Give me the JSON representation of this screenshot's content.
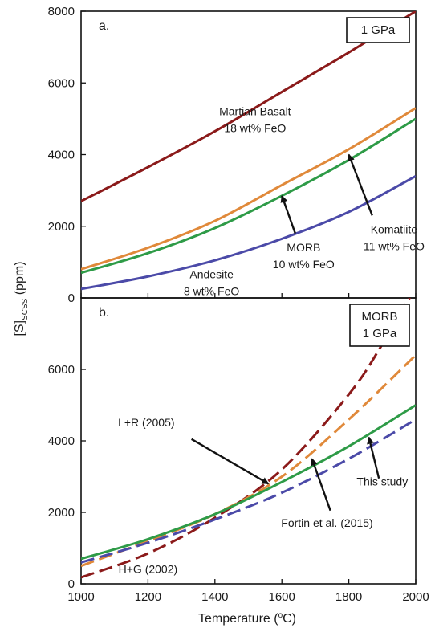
{
  "chart_data": {
    "type": "line",
    "ylabel_main": "[S]",
    "ylabel_sub": "SCSS",
    "ylabel_unit": " (ppm)",
    "xlabel_main": "Temperature (",
    "xlabel_deg": "o",
    "xlabel_tail": "C)",
    "xlim": [
      1000,
      2000
    ],
    "ylim": [
      0,
      8000
    ],
    "x_ticks": [
      1000,
      1200,
      1400,
      1600,
      1800,
      2000
    ],
    "y_ticks_a": [
      0,
      2000,
      4000,
      6000,
      8000
    ],
    "y_ticks_b": [
      0,
      2000,
      4000,
      6000
    ],
    "panels": [
      {
        "id": "a",
        "letter": "a.",
        "badge": [
          "1 GPa"
        ],
        "series": [
          {
            "color": "#8b1a1a",
            "dash": false,
            "x": [
              1000,
              1200,
              1400,
              1600,
              1800,
              2000
            ],
            "y": [
              2700,
              3650,
              4650,
              5750,
              6850,
              8000
            ]
          },
          {
            "color": "#e0893a",
            "dash": false,
            "x": [
              1000,
              1200,
              1400,
              1600,
              1800,
              2000
            ],
            "y": [
              800,
              1400,
              2150,
              3150,
              4150,
              5300
            ]
          },
          {
            "color": "#2e9b47",
            "dash": false,
            "x": [
              1000,
              1200,
              1400,
              1600,
              1800,
              2000
            ],
            "y": [
              700,
              1250,
              1950,
              2850,
              3850,
              5000
            ]
          },
          {
            "color": "#4b4aa8",
            "dash": false,
            "x": [
              1000,
              1200,
              1400,
              1600,
              1800,
              2000
            ],
            "y": [
              250,
              600,
              1050,
              1650,
              2400,
              3400
            ]
          }
        ],
        "annotations": [
          {
            "lines": [
              "Martian Basalt",
              "18 wt% FeO"
            ],
            "x": 1520,
            "y": 5100
          },
          {
            "lines": [
              "Komatiite",
              "11 wt% FeO"
            ],
            "x": 1935,
            "y": 1800
          },
          {
            "lines": [
              "MORB",
              "10 wt% FeO"
            ],
            "x": 1665,
            "y": 1300
          },
          {
            "lines": [
              "Andesite",
              "8 wt% FeO"
            ],
            "x": 1390,
            "y": 550
          }
        ],
        "arrows": [
          {
            "from": [
              1870,
              2300
            ],
            "to": [
              1800,
              4000
            ]
          },
          {
            "from": [
              1640,
              1800
            ],
            "to": [
              1600,
              2850
            ]
          }
        ]
      },
      {
        "id": "b",
        "letter": "b.",
        "badge": [
          "MORB",
          "1 GPa"
        ],
        "series": [
          {
            "color": "#8b1a1a",
            "dash": true,
            "x": [
              1000,
              1200,
              1400,
              1600,
              1800,
              1900,
              2000
            ],
            "y": [
              180,
              850,
              1850,
              3200,
              5300,
              6700,
              8300
            ]
          },
          {
            "color": "#e0893a",
            "dash": true,
            "x": [
              1000,
              1200,
              1400,
              1600,
              1800,
              2000
            ],
            "y": [
              500,
              1200,
              1950,
              3000,
              4600,
              6400
            ]
          },
          {
            "color": "#2e9b47",
            "dash": false,
            "x": [
              1000,
              1200,
              1400,
              1600,
              1800,
              2000
            ],
            "y": [
              700,
              1250,
              1950,
              2850,
              3850,
              5000
            ]
          },
          {
            "color": "#4b4aa8",
            "dash": true,
            "x": [
              1000,
              1200,
              1400,
              1600,
              1800,
              2000
            ],
            "y": [
              600,
              1150,
              1800,
              2550,
              3500,
              4600
            ]
          }
        ],
        "annotations": [
          {
            "lines": [
              "L+R (2005)"
            ],
            "x": 1195,
            "y": 4400
          },
          {
            "lines": [
              "This study"
            ],
            "x": 1900,
            "y": 2750
          },
          {
            "lines": [
              "Fortin et al. (2015)"
            ],
            "x": 1735,
            "y": 1600
          },
          {
            "lines": [
              "H+G (2002)"
            ],
            "x": 1200,
            "y": 300
          }
        ],
        "arrows": [
          {
            "from": [
              1330,
              4050
            ],
            "to": [
              1560,
              2800
            ]
          },
          {
            "from": [
              1890,
              2950
            ],
            "to": [
              1860,
              4100
            ]
          },
          {
            "from": [
              1745,
              2050
            ],
            "to": [
              1690,
              3500
            ]
          }
        ]
      }
    ]
  }
}
